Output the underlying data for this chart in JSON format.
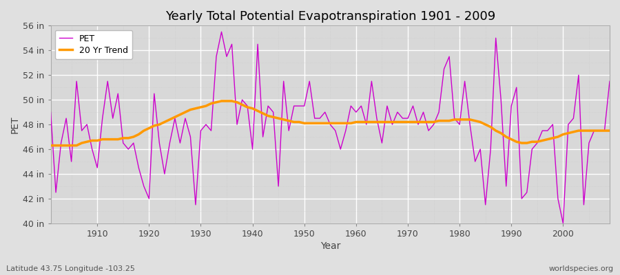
{
  "title": "Yearly Total Potential Evapotranspiration 1901 - 2009",
  "xlabel": "Year",
  "ylabel": "PET",
  "lat_lon_label": "Latitude 43.75 Longitude -103.25",
  "source_label": "worldspecies.org",
  "years": [
    1901,
    1902,
    1903,
    1904,
    1905,
    1906,
    1907,
    1908,
    1909,
    1910,
    1911,
    1912,
    1913,
    1914,
    1915,
    1916,
    1917,
    1918,
    1919,
    1920,
    1921,
    1922,
    1923,
    1924,
    1925,
    1926,
    1927,
    1928,
    1929,
    1930,
    1931,
    1932,
    1933,
    1934,
    1935,
    1936,
    1937,
    1938,
    1939,
    1940,
    1941,
    1942,
    1943,
    1944,
    1945,
    1946,
    1947,
    1948,
    1949,
    1950,
    1951,
    1952,
    1953,
    1954,
    1955,
    1956,
    1957,
    1958,
    1959,
    1960,
    1961,
    1962,
    1963,
    1964,
    1965,
    1966,
    1967,
    1968,
    1969,
    1970,
    1971,
    1972,
    1973,
    1974,
    1975,
    1976,
    1977,
    1978,
    1979,
    1980,
    1981,
    1982,
    1983,
    1984,
    1985,
    1986,
    1987,
    1988,
    1989,
    1990,
    1991,
    1992,
    1993,
    1994,
    1995,
    1996,
    1997,
    1998,
    1999,
    2000,
    2001,
    2002,
    2003,
    2004,
    2005,
    2006,
    2007,
    2008,
    2009
  ],
  "pet": [
    49.0,
    42.5,
    46.5,
    48.5,
    45.0,
    51.5,
    47.5,
    48.0,
    46.0,
    44.5,
    48.5,
    51.5,
    48.5,
    50.5,
    46.5,
    46.0,
    46.5,
    44.5,
    43.0,
    42.0,
    50.5,
    46.5,
    44.0,
    46.5,
    48.5,
    46.5,
    48.5,
    47.0,
    41.5,
    47.5,
    48.0,
    47.5,
    53.5,
    55.5,
    53.5,
    54.5,
    48.0,
    50.0,
    49.5,
    46.0,
    54.5,
    47.0,
    49.5,
    49.0,
    43.0,
    51.5,
    47.5,
    49.5,
    49.5,
    49.5,
    51.5,
    48.5,
    48.5,
    49.0,
    48.0,
    47.5,
    46.0,
    47.5,
    49.5,
    49.0,
    49.5,
    48.0,
    51.5,
    48.5,
    46.5,
    49.5,
    48.0,
    49.0,
    48.5,
    48.5,
    49.5,
    48.0,
    49.0,
    47.5,
    48.0,
    49.0,
    52.5,
    53.5,
    48.5,
    48.0,
    51.5,
    48.0,
    45.0,
    46.0,
    41.5,
    46.0,
    55.0,
    50.0,
    43.0,
    49.5,
    51.0,
    42.0,
    42.5,
    46.0,
    46.5,
    47.5,
    47.5,
    48.0,
    42.0,
    40.0,
    48.0,
    48.5,
    52.0,
    41.5,
    46.5,
    47.5,
    47.5,
    47.5,
    51.5
  ],
  "trend": [
    46.3,
    46.3,
    46.3,
    46.3,
    46.3,
    46.3,
    46.5,
    46.6,
    46.7,
    46.7,
    46.8,
    46.8,
    46.8,
    46.8,
    46.9,
    46.9,
    47.0,
    47.2,
    47.5,
    47.7,
    47.9,
    48.0,
    48.2,
    48.4,
    48.6,
    48.8,
    49.0,
    49.2,
    49.3,
    49.4,
    49.5,
    49.7,
    49.8,
    49.9,
    49.9,
    49.9,
    49.8,
    49.6,
    49.4,
    49.3,
    49.1,
    48.9,
    48.7,
    48.6,
    48.5,
    48.4,
    48.3,
    48.2,
    48.2,
    48.1,
    48.1,
    48.1,
    48.1,
    48.1,
    48.1,
    48.1,
    48.1,
    48.1,
    48.1,
    48.2,
    48.2,
    48.2,
    48.2,
    48.2,
    48.2,
    48.2,
    48.2,
    48.2,
    48.2,
    48.2,
    48.2,
    48.2,
    48.2,
    48.2,
    48.2,
    48.3,
    48.3,
    48.3,
    48.4,
    48.4,
    48.4,
    48.4,
    48.3,
    48.2,
    48.0,
    47.8,
    47.5,
    47.3,
    47.0,
    46.8,
    46.6,
    46.5,
    46.5,
    46.6,
    46.6,
    46.7,
    46.8,
    46.9,
    47.0,
    47.2,
    47.3,
    47.4,
    47.5,
    47.5,
    47.5,
    47.5,
    47.5,
    47.5,
    47.5
  ],
  "pet_color": "#cc00cc",
  "trend_color": "#ff9900",
  "background_color": "#e0e0e0",
  "plot_bg_color": "#d8d8d8",
  "grid_major_color": "#ffffff",
  "grid_minor_color": "#cccccc",
  "ylim": [
    40,
    56
  ],
  "yticks": [
    40,
    42,
    44,
    46,
    48,
    50,
    52,
    54,
    56
  ],
  "xticks": [
    1910,
    1920,
    1930,
    1940,
    1950,
    1960,
    1970,
    1980,
    1990,
    2000
  ],
  "title_fontsize": 13,
  "axis_label_fontsize": 10,
  "tick_fontsize": 9,
  "legend_fontsize": 9
}
